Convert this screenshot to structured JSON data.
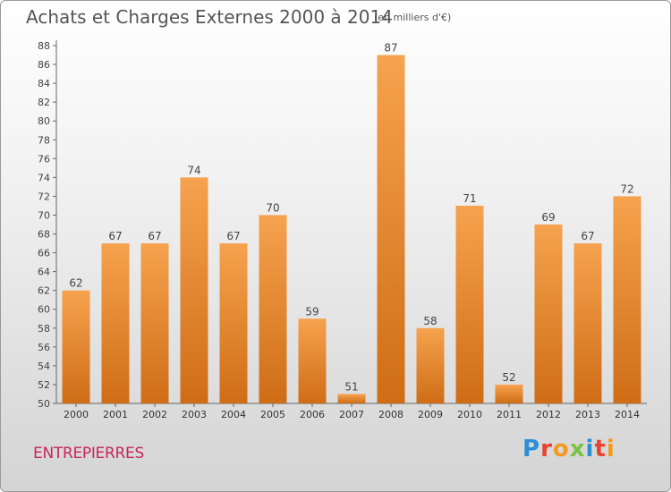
{
  "header": {
    "title": "Achats et Charges Externes 2000 à 2014",
    "unit": "(en milliers d'€)"
  },
  "footer": {
    "commune": "ENTREPIERRES",
    "logo_text": "Proxiti",
    "logo_colors": [
      "#2b8fd6",
      "#e8432f",
      "#f39a1e",
      "#7cc242",
      "#2b8fd6",
      "#e8432f",
      "#f39a1e"
    ]
  },
  "chart_data": {
    "type": "bar",
    "title": "Achats et Charges Externes 2000 à 2014",
    "subtitle": "(en milliers d'€)",
    "categories": [
      "2000",
      "2001",
      "2002",
      "2003",
      "2004",
      "2005",
      "2006",
      "2007",
      "2008",
      "2009",
      "2010",
      "2011",
      "2012",
      "2013",
      "2014"
    ],
    "values": [
      62,
      67,
      67,
      74,
      67,
      70,
      59,
      51,
      87,
      58,
      71,
      52,
      69,
      67,
      72
    ],
    "ylim": [
      50,
      88
    ],
    "yticks": [
      50,
      52,
      54,
      56,
      58,
      60,
      62,
      64,
      66,
      68,
      70,
      72,
      74,
      76,
      78,
      80,
      82,
      84,
      86,
      88
    ],
    "grid": false,
    "bar_color_top": "#f6a24e",
    "bar_color_bottom": "#cf6d16"
  }
}
